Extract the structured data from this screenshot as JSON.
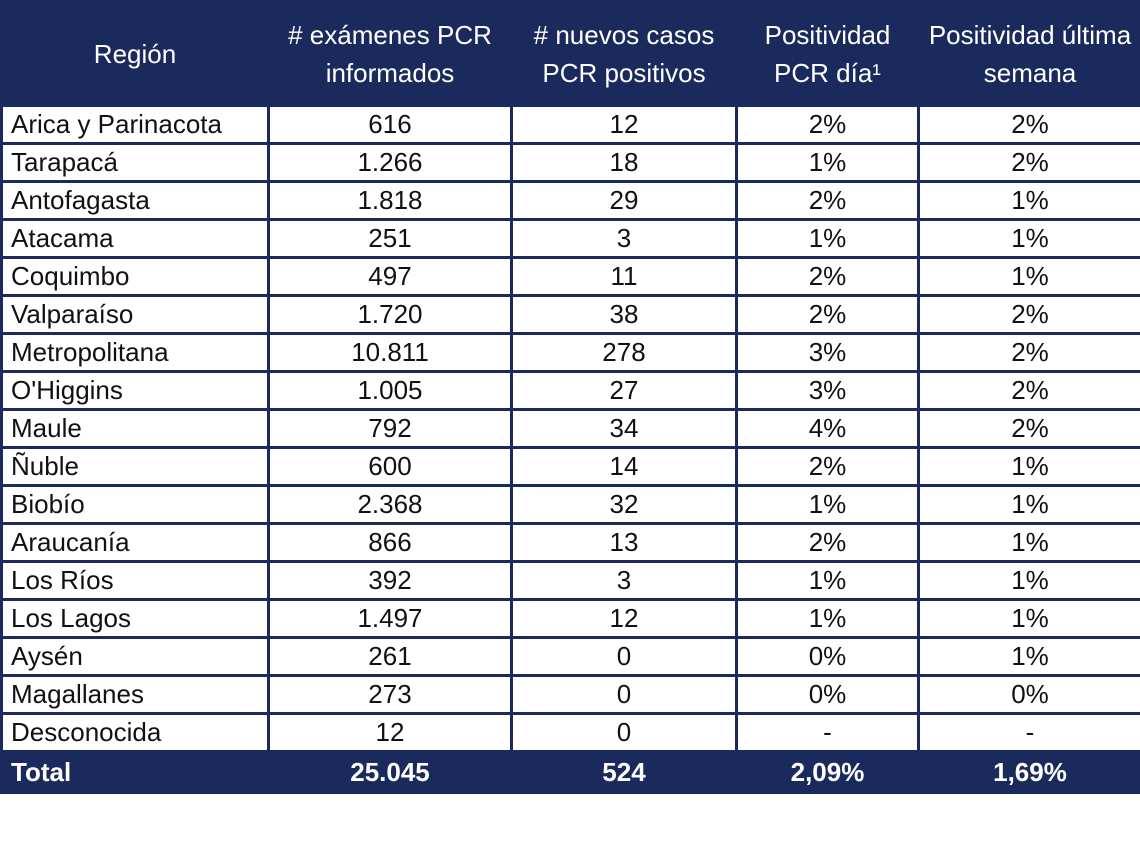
{
  "table": {
    "header": [
      "Región",
      "# exámenes PCR informados",
      "# nuevos casos PCR positivos",
      "Positividad PCR día¹",
      "Positividad última semana"
    ],
    "rows": [
      [
        "Arica y Parinacota",
        "616",
        "12",
        "2%",
        "2%"
      ],
      [
        "Tarapacá",
        "1.266",
        "18",
        "1%",
        "2%"
      ],
      [
        "Antofagasta",
        "1.818",
        "29",
        "2%",
        "1%"
      ],
      [
        "Atacama",
        "251",
        "3",
        "1%",
        "1%"
      ],
      [
        "Coquimbo",
        "497",
        "11",
        "2%",
        "1%"
      ],
      [
        "Valparaíso",
        "1.720",
        "38",
        "2%",
        "2%"
      ],
      [
        "Metropolitana",
        "10.811",
        "278",
        "3%",
        "2%"
      ],
      [
        "O'Higgins",
        "1.005",
        "27",
        "3%",
        "2%"
      ],
      [
        "Maule",
        "792",
        "34",
        "4%",
        "2%"
      ],
      [
        "Ñuble",
        "600",
        "14",
        "2%",
        "1%"
      ],
      [
        "Biobío",
        "2.368",
        "32",
        "1%",
        "1%"
      ],
      [
        "Araucanía",
        "866",
        "13",
        "2%",
        "1%"
      ],
      [
        "Los Ríos",
        "392",
        "3",
        "1%",
        "1%"
      ],
      [
        "Los Lagos",
        "1.497",
        "12",
        "1%",
        "1%"
      ],
      [
        "Aysén",
        "261",
        "0",
        "0%",
        "1%"
      ],
      [
        "Magallanes",
        "273",
        "0",
        "0%",
        "0%"
      ],
      [
        "Desconocida",
        "12",
        "0",
        "-",
        "-"
      ]
    ],
    "total": [
      "Total",
      "25.045",
      "524",
      "2,09%",
      "1,69%"
    ]
  }
}
